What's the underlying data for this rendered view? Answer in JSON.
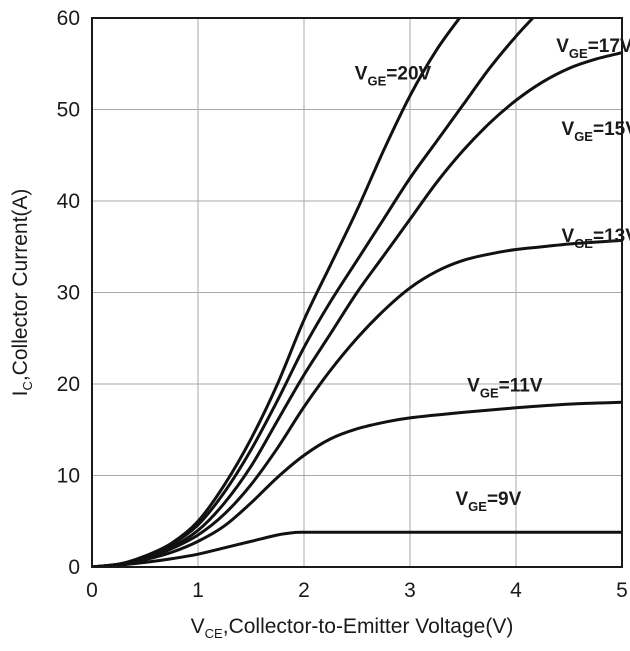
{
  "chart_data": {
    "type": "line",
    "title": "",
    "xlabel": {
      "main": "V",
      "sub": "CE",
      "rest": ",Collector-to-Emitter Voltage(V)"
    },
    "ylabel": {
      "main": "I",
      "sub": "C",
      "rest": ",Collector Current(A)"
    },
    "xlim": [
      0,
      5
    ],
    "ylim": [
      0,
      60
    ],
    "xticks": [
      0,
      1,
      2,
      3,
      4,
      5
    ],
    "yticks": [
      0,
      10,
      20,
      30,
      40,
      50,
      60
    ],
    "grid": true,
    "series": [
      {
        "name": "VGE=20V",
        "label": {
          "main": "V",
          "sub": "GE",
          "rest": "=20V"
        },
        "x": [
          0,
          0.25,
          0.5,
          0.75,
          1.0,
          1.25,
          1.5,
          1.75,
          2.0,
          2.25,
          2.5,
          2.75,
          3.0,
          3.25,
          3.5
        ],
        "y": [
          0,
          0.3,
          1.2,
          2.6,
          5.0,
          9.0,
          14.0,
          20.0,
          27.0,
          33.0,
          39.0,
          45.5,
          51.5,
          56.5,
          60.5
        ]
      },
      {
        "name": "VGE=17V",
        "label": {
          "main": "V",
          "sub": "GE",
          "rest": "=17V"
        },
        "x": [
          0,
          0.25,
          0.5,
          0.75,
          1.0,
          1.25,
          1.5,
          1.75,
          2.0,
          2.25,
          2.5,
          2.75,
          3.0,
          3.25,
          3.5,
          3.75,
          4.0,
          4.2
        ],
        "y": [
          0,
          0.3,
          1.1,
          2.5,
          4.6,
          8.2,
          12.8,
          18.2,
          24.0,
          29.0,
          33.5,
          38.0,
          42.5,
          46.5,
          50.5,
          54.5,
          58.0,
          60.5
        ]
      },
      {
        "name": "VGE=15V",
        "label": {
          "main": "V",
          "sub": "GE",
          "rest": "=15V"
        },
        "x": [
          0,
          0.25,
          0.5,
          0.75,
          1.0,
          1.25,
          1.5,
          1.75,
          2.0,
          2.25,
          2.5,
          2.75,
          3.0,
          3.25,
          3.5,
          3.75,
          4.0,
          4.25,
          4.5,
          4.75,
          5.0
        ],
        "y": [
          0,
          0.3,
          1.0,
          2.2,
          4.0,
          7.0,
          11.0,
          16.0,
          21.0,
          25.5,
          30.0,
          34.0,
          38.0,
          42.0,
          45.5,
          48.5,
          51.0,
          53.0,
          54.5,
          55.5,
          56.2
        ]
      },
      {
        "name": "VGE=13V",
        "label": {
          "main": "V",
          "sub": "GE",
          "rest": "=13V"
        },
        "x": [
          0,
          0.25,
          0.5,
          0.75,
          1.0,
          1.25,
          1.5,
          1.75,
          2.0,
          2.25,
          2.5,
          2.75,
          3.0,
          3.25,
          3.5,
          3.75,
          4.0,
          4.25,
          4.5,
          4.75,
          5.0
        ],
        "y": [
          0,
          0.3,
          0.9,
          2.0,
          3.5,
          5.8,
          9.0,
          13.0,
          17.5,
          21.5,
          25.0,
          28.0,
          30.5,
          32.3,
          33.5,
          34.2,
          34.7,
          35.0,
          35.3,
          35.5,
          35.7
        ]
      },
      {
        "name": "VGE=11V",
        "label": {
          "main": "V",
          "sub": "GE",
          "rest": "=11V"
        },
        "x": [
          0,
          0.25,
          0.5,
          0.75,
          1.0,
          1.25,
          1.5,
          1.75,
          2.0,
          2.25,
          2.5,
          2.75,
          3.0,
          3.5,
          4.0,
          4.5,
          5.0
        ],
        "y": [
          0,
          0.3,
          0.8,
          1.6,
          2.8,
          4.5,
          7.0,
          9.8,
          12.2,
          14.0,
          15.1,
          15.8,
          16.3,
          16.9,
          17.4,
          17.8,
          18.0
        ]
      },
      {
        "name": "VGE=9V",
        "label": {
          "main": "V",
          "sub": "GE",
          "rest": "=9V"
        },
        "x": [
          0,
          0.25,
          0.5,
          0.75,
          1.0,
          1.25,
          1.5,
          1.75,
          1.9,
          2.0,
          2.5,
          3.0,
          3.5,
          4.0,
          4.5,
          5.0
        ],
        "y": [
          0,
          0.2,
          0.5,
          0.9,
          1.4,
          2.1,
          2.8,
          3.5,
          3.75,
          3.8,
          3.8,
          3.8,
          3.8,
          3.8,
          3.8,
          3.8
        ]
      }
    ],
    "annotations": [
      {
        "series": 0,
        "x": 3.2,
        "y": 53.3
      },
      {
        "series": 1,
        "x": 5.1,
        "y": 56.3
      },
      {
        "series": 2,
        "x": 5.15,
        "y": 47.2
      },
      {
        "series": 3,
        "x": 5.15,
        "y": 35.5
      },
      {
        "series": 4,
        "x": 4.25,
        "y": 19.2
      },
      {
        "series": 5,
        "x": 4.05,
        "y": 6.8
      }
    ]
  }
}
